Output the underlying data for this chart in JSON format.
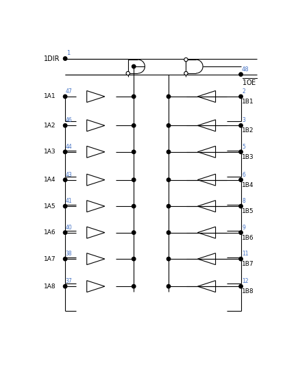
{
  "bg_color": "#ffffff",
  "line_color": "#000000",
  "text_color": "#000000",
  "pin_color": "#4472c4",
  "channels": [
    {
      "a_label": "1A1",
      "a_pin": "47",
      "b_label": "1B1",
      "b_pin": "2"
    },
    {
      "a_label": "1A2",
      "a_pin": "46",
      "b_label": "1B2",
      "b_pin": "3"
    },
    {
      "a_label": "1A3",
      "a_pin": "44",
      "b_label": "1B3",
      "b_pin": "5"
    },
    {
      "a_label": "1A4",
      "a_pin": "43",
      "b_label": "1B4",
      "b_pin": "6"
    },
    {
      "a_label": "1A5",
      "a_pin": "41",
      "b_label": "1B5",
      "b_pin": "8"
    },
    {
      "a_label": "1A6",
      "a_pin": "40",
      "b_label": "1B6",
      "b_pin": "9"
    },
    {
      "a_label": "1A7",
      "a_pin": "38",
      "b_label": "1B7",
      "b_pin": "11"
    },
    {
      "a_label": "1A8",
      "a_pin": "37",
      "b_label": "1B8",
      "b_pin": "12"
    }
  ],
  "dir_label": "1DIR",
  "dir_pin": "1",
  "oe_pin": "48",
  "oe_label": "1OE"
}
